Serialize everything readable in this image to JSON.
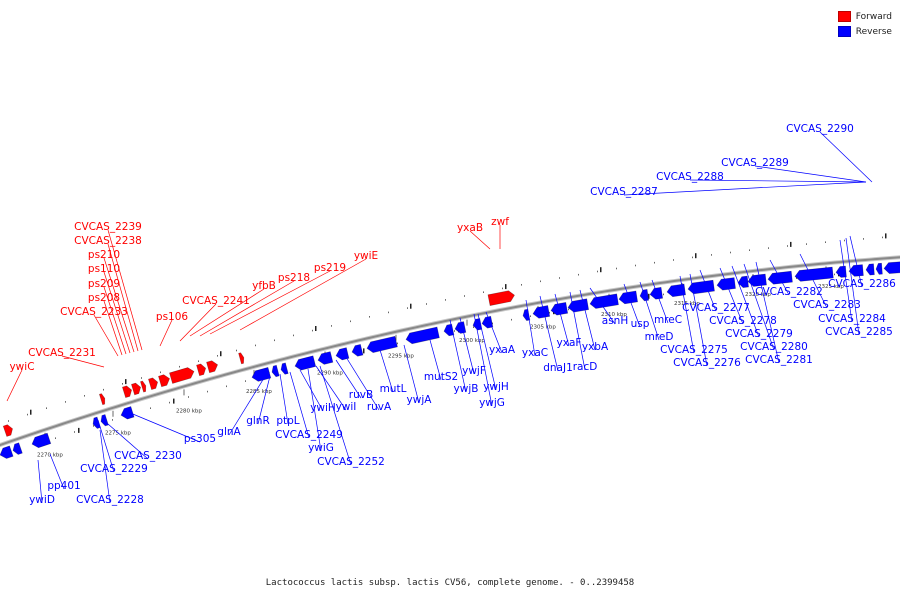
{
  "colors": {
    "forward": "#ff0000",
    "reverse": "#0000ff",
    "backbone": "#888888"
  },
  "legend": [
    {
      "label": "Forward",
      "color": "#ff0000"
    },
    {
      "label": "Reverse",
      "color": "#0000ff"
    }
  ],
  "caption": "Lactococcus lactis subsp. lactis CV56, complete genome. - 0..2399458",
  "ticks": [
    "2270 kbp",
    "2275 kbp",
    "2280 kbp",
    "2285 kbp",
    "2290 kbp",
    "2295 kbp",
    "2300 kbp",
    "2305 kbp",
    "2310 kbp",
    "2315 kbp",
    "2320 kbp",
    "2325 kbp"
  ],
  "forward_genes": [
    "ywiC",
    "CVCAS_2231",
    "CVCAS_2233",
    "ps208",
    "ps209",
    "ps110",
    "ps210",
    "CVCAS_2238",
    "CVCAS_2239",
    "ps106",
    "CVCAS_2241",
    "yfbB",
    "ps218",
    "ps219",
    "ywiE",
    "yxaB",
    "zwf"
  ],
  "reverse_genes": [
    "ywiD",
    "pp401",
    "CVCAS_2228",
    "CVCAS_2229",
    "CVCAS_2230",
    "ps305",
    "glnA",
    "glnR",
    "ptpL",
    "CVCAS_2249",
    "ywiH",
    "ywiG",
    "ywiI",
    "CVCAS_2252",
    "ruvB",
    "ruvA",
    "mutL",
    "ywjA",
    "mutS2",
    "ywjB",
    "ywjF",
    "ywjH",
    "ywjG",
    "yxaA",
    "yxaC",
    "dnaJ1",
    "yxaF",
    "racD",
    "yxbA",
    "asnH",
    "usp",
    "mreD",
    "mreC",
    "CVCAS_2275",
    "CVCAS_2276",
    "CVCAS_2277",
    "CVCAS_2278",
    "CVCAS_2279",
    "CVCAS_2280",
    "CVCAS_2281",
    "CVCAS_2282",
    "CVCAS_2283",
    "CVCAS_2284",
    "CVCAS_2285",
    "CVCAS_2286",
    "CVCAS_2287",
    "CVCAS_2288",
    "CVCAS_2289",
    "CVCAS_2290"
  ]
}
